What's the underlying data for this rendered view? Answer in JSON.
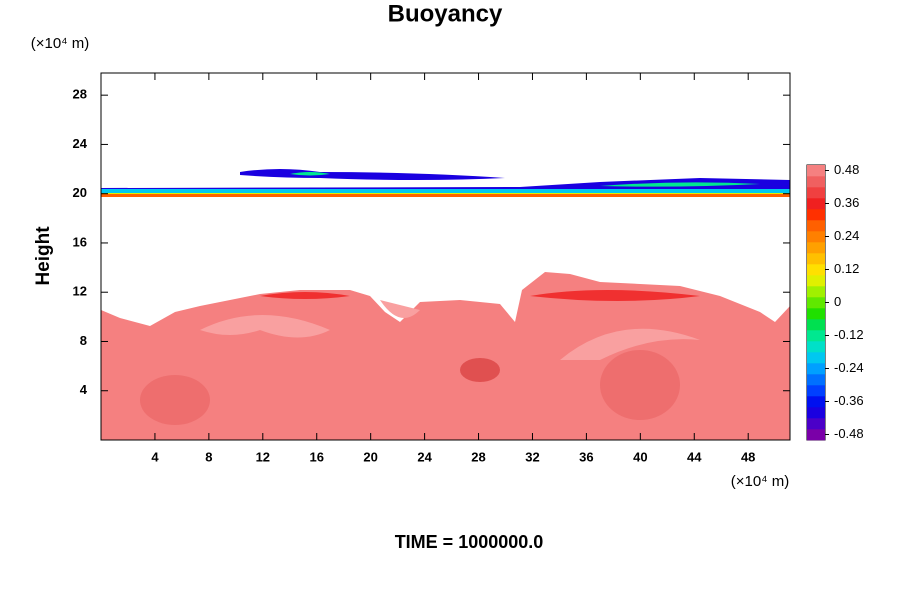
{
  "chart_data": {
    "type": "contour",
    "title": "Buoyancy",
    "x_unit": "(×10⁴ m)",
    "y_unit": "(×10⁴ m)",
    "ylabel": "Height",
    "footer": "TIME = 1000000.0",
    "xlim": [
      0,
      51.1
    ],
    "xticks": [
      4,
      8,
      12,
      16,
      20,
      24,
      28,
      32,
      36,
      40,
      44,
      48
    ],
    "ylim": [
      0,
      29.8
    ],
    "yticks": [
      4,
      8,
      12,
      16,
      20,
      24,
      28
    ],
    "colorbar": {
      "lim": [
        -0.5,
        0.5
      ],
      "ticks": [
        0.48,
        0.36,
        0.24,
        0.12,
        0,
        -0.12,
        -0.24,
        -0.36,
        -0.48
      ],
      "colors": [
        "#7a00a8",
        "#4b00c8",
        "#1a00e0",
        "#0010f0",
        "#0040ff",
        "#0070ff",
        "#00a0ff",
        "#00c8f0",
        "#00e0c8",
        "#00e890",
        "#00e050",
        "#20e000",
        "#60e800",
        "#a0f000",
        "#e0f000",
        "#ffe000",
        "#ffc000",
        "#ffa000",
        "#ff8000",
        "#ff6000",
        "#ff3000",
        "#f02020",
        "#f04040",
        "#f06060",
        "#f58080"
      ]
    }
  }
}
